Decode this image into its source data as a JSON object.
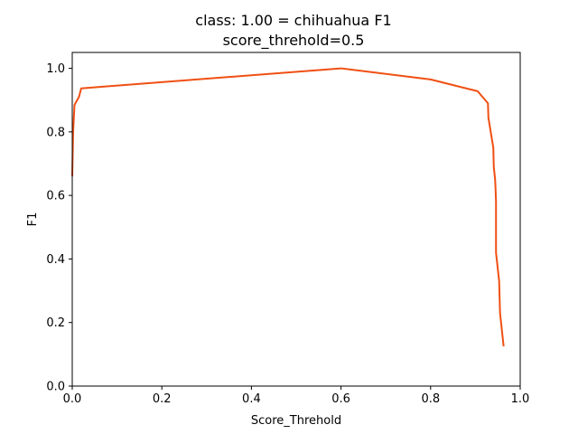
{
  "chart_data": {
    "type": "line",
    "title": "class: 1.00 = chihuahua F1",
    "subtitle": "score_threhold=0.5",
    "xlabel": "Score_Threhold",
    "ylabel": "F1",
    "xlim": [
      0.0,
      1.0
    ],
    "ylim": [
      0.0,
      1.05
    ],
    "xticks": [
      "0.0",
      "0.2",
      "0.4",
      "0.6",
      "0.8",
      "1.0"
    ],
    "yticks": [
      "0.0",
      "0.2",
      "0.4",
      "0.6",
      "0.8",
      "1.0"
    ],
    "grid": false,
    "series": [
      {
        "color": "#f04f14",
        "x": [
          0.0,
          0.002,
          0.005,
          0.015,
          0.02,
          0.6,
          0.8,
          0.905,
          0.928,
          0.929,
          0.94,
          0.941,
          0.944,
          0.945,
          0.946,
          0.946,
          0.953,
          0.955,
          0.963
        ],
        "y": [
          0.66,
          0.8,
          0.885,
          0.91,
          0.937,
          1.0,
          0.965,
          0.928,
          0.89,
          0.845,
          0.75,
          0.69,
          0.65,
          0.62,
          0.58,
          0.42,
          0.33,
          0.23,
          0.125
        ]
      }
    ]
  }
}
